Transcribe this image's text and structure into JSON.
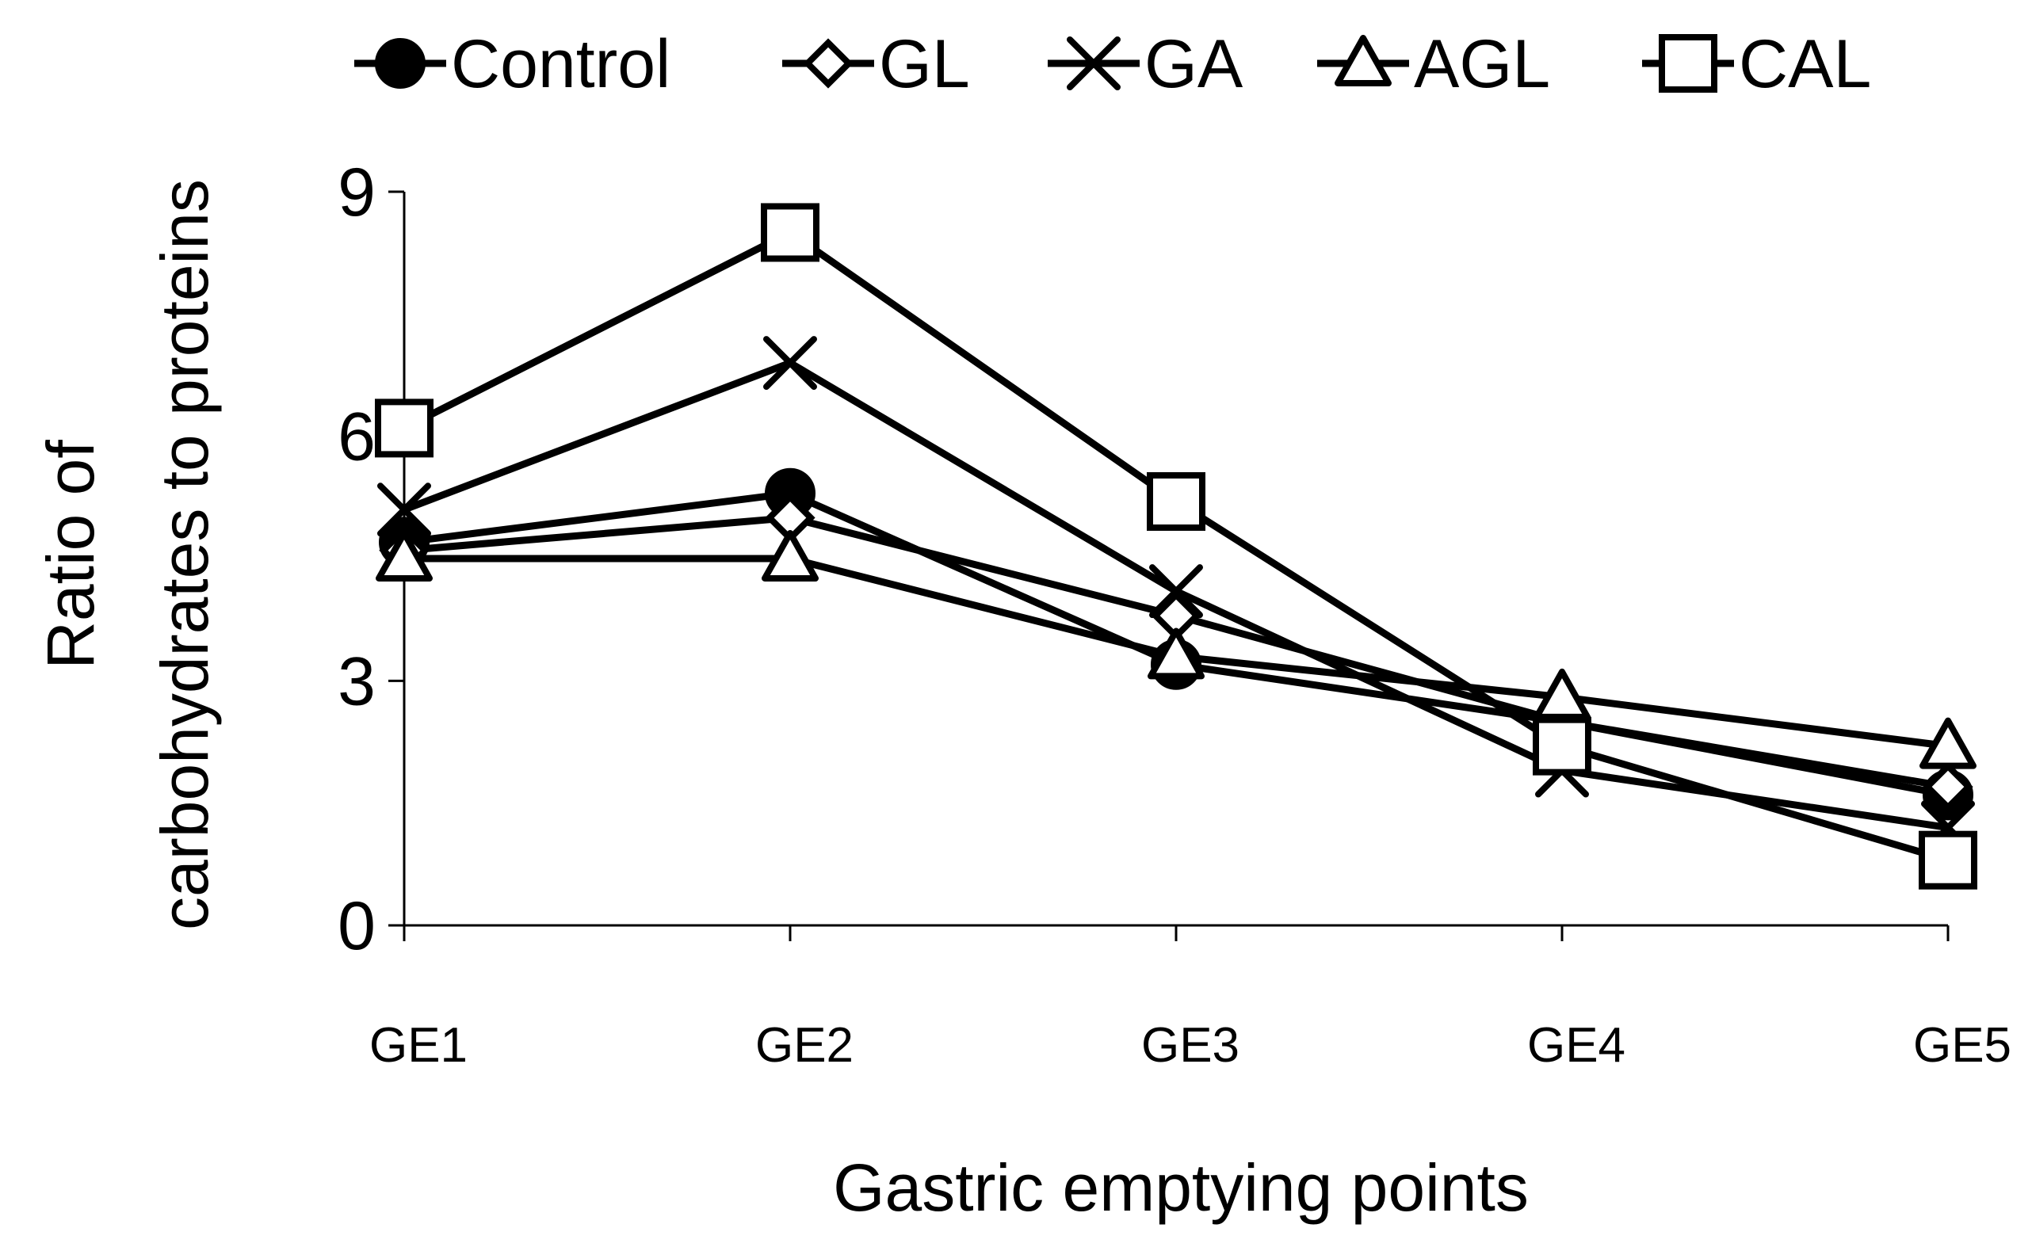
{
  "chart_data": {
    "type": "line",
    "title": "",
    "xlabel": "Gastric emptying points",
    "ylabel_lines": [
      "Ratio of",
      "carbohydrates to proteins"
    ],
    "categories": [
      "GE1",
      "GE2",
      "GE3",
      "GE4",
      "GE5"
    ],
    "ylim": [
      0,
      9
    ],
    "yticks": [
      0,
      3,
      6,
      9
    ],
    "ytick_labels": [
      "0",
      "3",
      "6",
      "9"
    ],
    "legend_position": "top",
    "series": [
      {
        "name": "Control",
        "marker": "filled-circle",
        "values": [
          4.7,
          5.3,
          3.2,
          2.5,
          1.6
        ]
      },
      {
        "name": "GL",
        "marker": "open-diamond",
        "values": [
          4.6,
          5.0,
          3.8,
          2.5,
          1.7
        ]
      },
      {
        "name": "GA",
        "marker": "x-cross",
        "values": [
          5.1,
          6.9,
          4.1,
          1.9,
          1.2
        ]
      },
      {
        "name": "AGL",
        "marker": "open-triangle",
        "values": [
          4.5,
          4.5,
          3.3,
          2.8,
          2.2
        ]
      },
      {
        "name": "CAL",
        "marker": "open-square",
        "values": [
          6.1,
          8.5,
          5.2,
          2.2,
          0.8
        ]
      }
    ]
  }
}
